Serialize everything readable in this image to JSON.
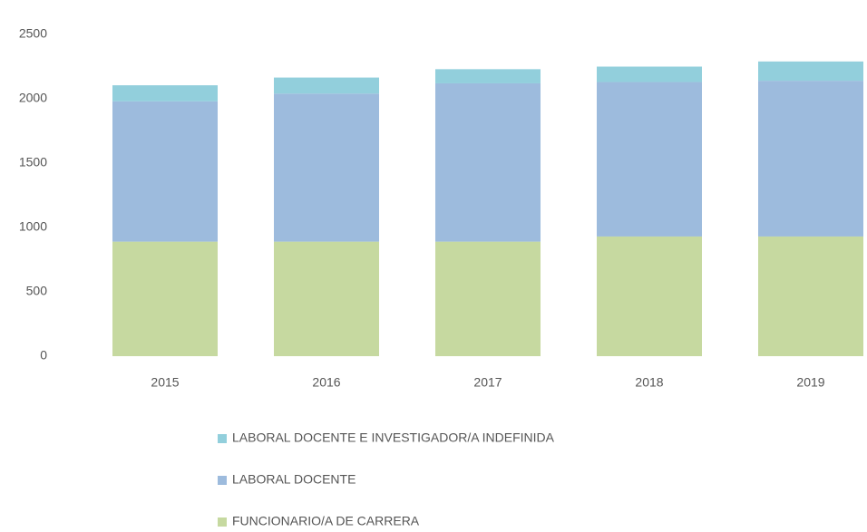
{
  "chart_data": {
    "type": "stacked_bar",
    "categories": [
      "2015",
      "2016",
      "2017",
      "2018",
      "2019"
    ],
    "series": [
      {
        "name": "FUNCIONARIO/A DE CARRERA",
        "color": "#c6d9a0",
        "values": [
          890,
          890,
          890,
          930,
          930
        ]
      },
      {
        "name": "LABORAL DOCENTE",
        "color": "#9dbbdd",
        "values": [
          1090,
          1150,
          1230,
          1200,
          1210
        ]
      },
      {
        "name": "LABORAL DOCENTE E INVESTIGADOR/A INDEFINIDA",
        "color": "#92cfdc",
        "values": [
          125,
          125,
          110,
          120,
          150
        ]
      }
    ],
    "ylim": [
      0,
      2500
    ],
    "yticks": [
      0,
      500,
      1000,
      1500,
      2000,
      2500
    ],
    "grid": false
  }
}
